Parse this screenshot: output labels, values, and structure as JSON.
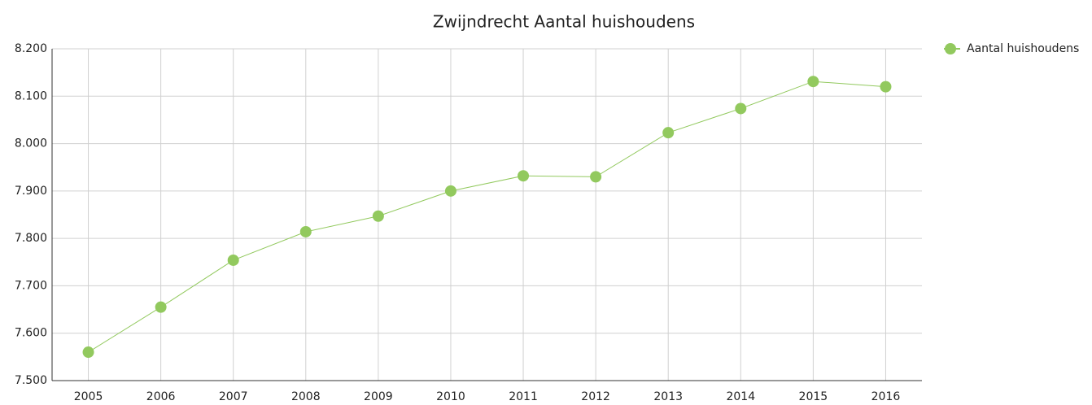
{
  "chart_data": {
    "type": "line",
    "title": "Zwijndrecht  Aantal huishoudens",
    "categories": [
      "2005",
      "2006",
      "2007",
      "2008",
      "2009",
      "2010",
      "2011",
      "2012",
      "2013",
      "2014",
      "2015",
      "2016"
    ],
    "series": [
      {
        "name": "Aantal huishoudens",
        "color": "#92c95e",
        "values": [
          7560,
          7655,
          7754,
          7814,
          7847,
          7900,
          7932,
          7930,
          8023,
          8074,
          8131,
          8120
        ]
      }
    ],
    "ylim": [
      7500,
      8200
    ],
    "yticks": [
      {
        "value": 7500,
        "label": "7.500"
      },
      {
        "value": 7600,
        "label": "7.600"
      },
      {
        "value": 7700,
        "label": "7.700"
      },
      {
        "value": 7800,
        "label": "7.800"
      },
      {
        "value": 7900,
        "label": "7.900"
      },
      {
        "value": 8000,
        "label": "8.000"
      },
      {
        "value": 8100,
        "label": "8.100"
      },
      {
        "value": 8200,
        "label": "8.200"
      }
    ],
    "grid": true,
    "legend": "top-right"
  }
}
